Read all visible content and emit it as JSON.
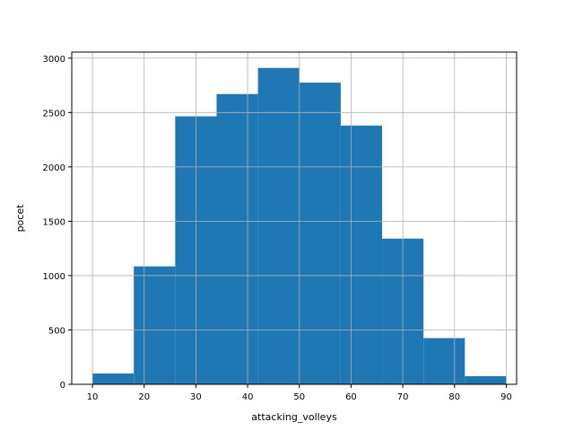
{
  "chart_data": {
    "type": "bar",
    "title": "",
    "xlabel": "attacking_volleys",
    "ylabel": "pocet",
    "bins": [
      {
        "x0": 10.0,
        "x1": 18.0,
        "count": 100
      },
      {
        "x0": 18.0,
        "x1": 26.0,
        "count": 1085
      },
      {
        "x0": 26.0,
        "x1": 34.0,
        "count": 2465
      },
      {
        "x0": 34.0,
        "x1": 42.0,
        "count": 2670
      },
      {
        "x0": 42.0,
        "x1": 50.0,
        "count": 2910
      },
      {
        "x0": 50.0,
        "x1": 58.0,
        "count": 2775
      },
      {
        "x0": 58.0,
        "x1": 66.0,
        "count": 2380
      },
      {
        "x0": 66.0,
        "x1": 74.0,
        "count": 1340
      },
      {
        "x0": 74.0,
        "x1": 82.0,
        "count": 425
      },
      {
        "x0": 82.0,
        "x1": 90.0,
        "count": 75
      }
    ],
    "xlim": [
      6,
      92
    ],
    "ylim": [
      0,
      3056
    ],
    "x_ticks": [
      10,
      20,
      30,
      40,
      50,
      60,
      70,
      80,
      90
    ],
    "y_ticks": [
      0,
      500,
      1000,
      1500,
      2000,
      2500,
      3000
    ],
    "grid": true,
    "bar_color": "#1f77b4",
    "grid_color": "#b0b0b0"
  }
}
